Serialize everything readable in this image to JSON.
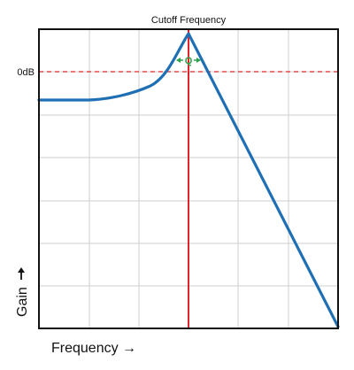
{
  "diagram": {
    "cutoff_label": "Cutoff Frequency",
    "zero_db_label": "0dB",
    "q_label": "Q",
    "y_axis_label": "Gain",
    "x_axis_label": "Frequency",
    "arrow_glyph": "→"
  },
  "colors": {
    "curve": "#1f6fb4",
    "cutoff_line": "#e0242b",
    "zero_db_line": "#e0242b",
    "q_marker": "#2ca24a",
    "grid": "#cfcfcf",
    "frame": "#111111"
  }
}
